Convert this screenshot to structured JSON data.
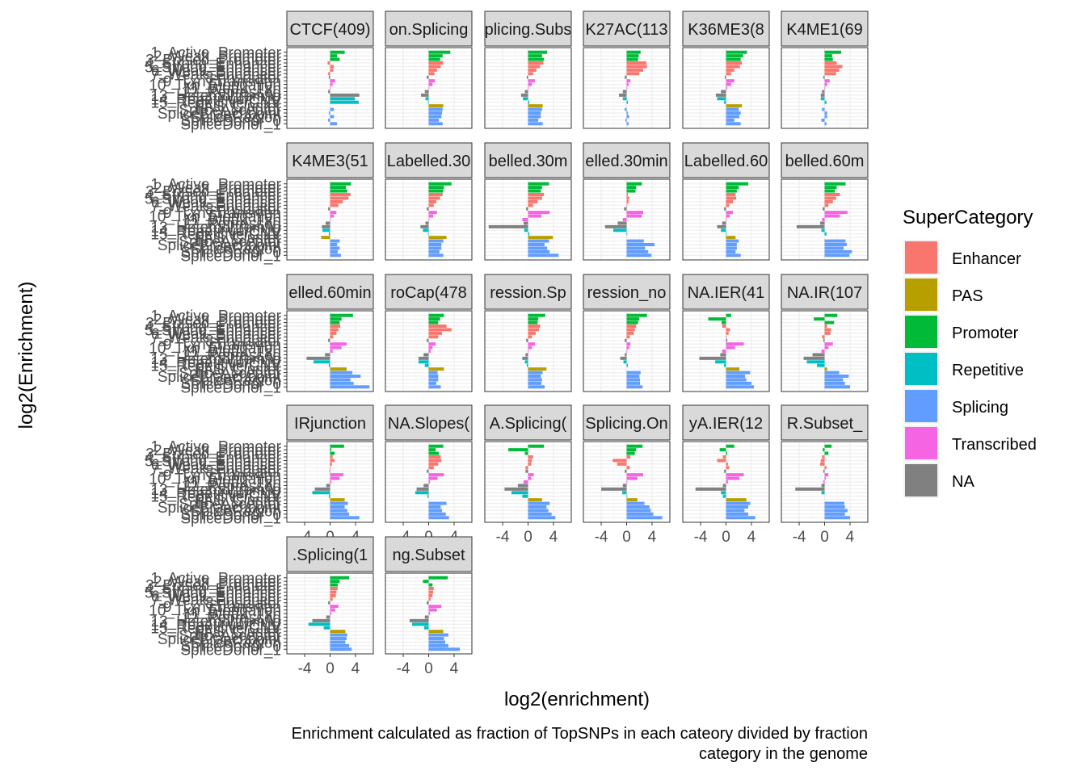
{
  "chart_data": {
    "type": "bar",
    "orientation": "horizontal",
    "facet_wrap_columns": 6,
    "xlabel": "log2(enrichment)",
    "ylabel": "log2(Enrichment)",
    "caption_lines": [
      "Enrichment calculated as fraction of TopSNPs in each cateory divided by fraction",
      "category in the genome"
    ],
    "xlim": [
      -6.8,
      6.8
    ],
    "x_ticks": [
      "-4",
      "0",
      "4"
    ],
    "grid": true,
    "legend_position": "right",
    "legend": {
      "title": "SuperCategory",
      "entries": [
        {
          "label": "Enhancer",
          "color": "#F8766D"
        },
        {
          "label": "PAS",
          "color": "#B79F00"
        },
        {
          "label": "Promoter",
          "color": "#00BA38"
        },
        {
          "label": "Repetitive",
          "color": "#00BFC4"
        },
        {
          "label": "Splicing",
          "color": "#619CFF"
        },
        {
          "label": "Transcribed",
          "color": "#F564E3"
        },
        {
          "label": "NA",
          "color": "#808080"
        }
      ]
    },
    "visible_y_labels": [
      "1_Active_Promoter",
      "2_Weak_Promoter",
      "3_Poised_Promoter",
      "4_Strong_Enhancer",
      "5_Strong_Enhancer",
      "6_Weak_Enhancer",
      "7_Weak_Enhancer",
      "8_Insulator",
      "9_Txn_Transition",
      "10_Txn_Elongation",
      "11_Weak_Txn",
      "12_Repressed",
      "13_Heterochrom/lo",
      "14_Repetitive/CNV",
      "15_Repetitive/CNV",
      "PAS_Cluster",
      "SpliceAcceptor",
      "SpliceBranchpoint",
      "SpliceRegion",
      "SpliceDonor_0",
      "SpliceDonor_1"
    ],
    "categories_super": [
      "Promoter",
      "Promoter",
      "Promoter",
      "Enhancer",
      "Enhancer",
      "Enhancer",
      "Enhancer",
      "NA",
      "Transcribed",
      "Transcribed",
      "Transcribed",
      "NA",
      "NA",
      "Repetitive",
      "Repetitive",
      "PAS",
      "Splicing",
      "Splicing",
      "Splicing",
      "Splicing",
      "Splicing"
    ],
    "facets": [
      {
        "strip": "CTCF(409)",
        "values": [
          2.3,
          1.1,
          1.5,
          -0.4,
          0.6,
          0.5,
          -0.3,
          -0.2,
          0.8,
          0.4,
          0.1,
          -0.3,
          4.6,
          3.9,
          4.5,
          0,
          0.6,
          -0.2,
          0.6,
          -0.3,
          1.1
        ]
      },
      {
        "strip": "on.Splicing",
        "values": [
          3.4,
          2.2,
          1.8,
          2.3,
          1.9,
          1.3,
          0.9,
          -0.3,
          1.0,
          0.6,
          0.1,
          -0.6,
          -1.2,
          -0.5,
          -0.1,
          2.3,
          2.2,
          2.1,
          2.0,
          1.6,
          2.2
        ]
      },
      {
        "strip": "plicing.Subs",
        "values": [
          3.0,
          2.2,
          2.5,
          2.4,
          1.9,
          1.3,
          0.8,
          -0.2,
          1.1,
          0.6,
          0.1,
          -0.5,
          -1.1,
          -0.8,
          0.2,
          2.3,
          2.2,
          2.0,
          2.0,
          1.6,
          2.3
        ]
      },
      {
        "strip": "K27AC(113",
        "values": [
          2.2,
          1.9,
          1.8,
          3.1,
          3.2,
          2.6,
          2.0,
          -0.3,
          0.6,
          0.3,
          0.1,
          -0.6,
          -1.2,
          -0.6,
          0.2,
          0,
          -0.3,
          0.2,
          0.4,
          -0.2,
          0.3
        ]
      },
      {
        "strip": "K36ME3(8",
        "values": [
          3.3,
          2.7,
          2.3,
          2.5,
          2.2,
          1.3,
          0.8,
          -0.2,
          1.3,
          0.8,
          0.2,
          -0.8,
          -1.6,
          -1.4,
          -0.3,
          2.5,
          2.0,
          2.3,
          2.1,
          1.3,
          2.3
        ]
      },
      {
        "strip": "K4ME1(69",
        "values": [
          2.6,
          1.2,
          1.3,
          1.9,
          2.8,
          2.3,
          1.8,
          -0.2,
          0.8,
          0.4,
          0.1,
          -0.4,
          -0.6,
          -0.6,
          0.3,
          0,
          -0.4,
          0.4,
          0.4,
          -0.5,
          0.3
        ]
      },
      {
        "strip": "K4ME3(51",
        "values": [
          3.3,
          2.5,
          2.7,
          3.2,
          2.9,
          2.0,
          1.3,
          -0.3,
          1.0,
          0.6,
          0.1,
          -0.7,
          -1.3,
          -1.2,
          -0.2,
          -1.4,
          1.5,
          1.1,
          1.5,
          1.2,
          1.7
        ]
      },
      {
        "strip": "Labelled.30",
        "values": [
          3.6,
          2.4,
          2.3,
          2.2,
          1.8,
          1.2,
          0.8,
          -0.3,
          1.3,
          0.7,
          0.1,
          -0.5,
          -1.3,
          -0.9,
          -0.1,
          2.8,
          2.3,
          2.0,
          2.0,
          1.7,
          2.3
        ]
      },
      {
        "strip": "belled.30m",
        "values": [
          3.3,
          2.2,
          2.0,
          2.5,
          2.2,
          1.5,
          0.8,
          -0.3,
          3.4,
          2.1,
          -0.9,
          -0.7,
          -6.2,
          -0.6,
          0.2,
          3.9,
          3.3,
          2.6,
          3.0,
          3.4,
          4.8
        ]
      },
      {
        "strip": "elled.30min",
        "values": [
          2.4,
          1.5,
          1.4,
          0.2,
          0.4,
          0.3,
          0.1,
          -0.4,
          2.6,
          2.4,
          -0.6,
          -1.4,
          -3.4,
          -2.1,
          0.1,
          0,
          2.7,
          4.4,
          2.9,
          3.4,
          3.9
        ]
      },
      {
        "strip": "Labelled.60",
        "values": [
          3.5,
          2.0,
          1.7,
          1.5,
          1.6,
          1.1,
          0.5,
          -0.3,
          1.1,
          0.6,
          0.1,
          -0.6,
          -1.4,
          -0.8,
          0.1,
          1.5,
          2.0,
          1.7,
          1.7,
          1.5,
          2.3
        ]
      },
      {
        "strip": "belled.60m",
        "values": [
          3.3,
          1.9,
          1.6,
          2.4,
          1.8,
          1.3,
          0.6,
          -0.3,
          3.6,
          2.4,
          -0.4,
          -0.7,
          -4.4,
          -0.5,
          0.3,
          0,
          3.3,
          3.5,
          3.0,
          4.3,
          3.9
        ]
      },
      {
        "strip": "elled.60min",
        "values": [
          3.6,
          1.8,
          1.5,
          1.6,
          1.3,
          1.0,
          0.5,
          -0.3,
          2.6,
          1.8,
          0.4,
          -0.8,
          -3.7,
          -2.6,
          -0.2,
          2.6,
          3.5,
          4.8,
          3.2,
          3.7,
          6.2
        ]
      },
      {
        "strip": "roCap(478",
        "values": [
          2.4,
          1.8,
          1.5,
          2.8,
          3.6,
          2.1,
          1.5,
          -0.3,
          1.1,
          0.6,
          0.3,
          -0.8,
          -1.6,
          -1.6,
          -0.6,
          2.4,
          1.4,
          1.5,
          1.5,
          1.2,
          1.9
        ]
      },
      {
        "strip": "ression.Sp",
        "values": [
          2.7,
          1.6,
          1.5,
          1.9,
          1.7,
          1.2,
          0.6,
          -0.3,
          1.1,
          0.6,
          0.1,
          -0.4,
          -0.9,
          -0.5,
          -0.2,
          2.9,
          2.3,
          2.0,
          2.2,
          2.1,
          2.6
        ]
      },
      {
        "strip": "ression_no",
        "values": [
          3.2,
          2.0,
          1.8,
          1.5,
          1.3,
          1.1,
          0.5,
          -0.3,
          0.6,
          0.4,
          0.1,
          -0.3,
          -1.0,
          -0.5,
          0.2,
          0,
          2.2,
          2.0,
          2.1,
          2.1,
          2.5
        ]
      },
      {
        "strip": "NA.IER(41",
        "values": [
          0.8,
          -2.8,
          -0.7,
          -0.6,
          0.6,
          0.4,
          0.1,
          0.2,
          2.8,
          1.4,
          -0.6,
          -0.9,
          -4.2,
          -1.7,
          -0.3,
          2.1,
          3.8,
          3.0,
          3.2,
          4.0,
          4.4
        ]
      },
      {
        "strip": "NA.IR(107",
        "values": [
          2.0,
          -1.7,
          1.5,
          0.4,
          1.0,
          0.9,
          -0.4,
          -0.2,
          1.3,
          0.6,
          -0.5,
          -1.9,
          -3.3,
          -2.8,
          -1.2,
          0.4,
          2.3,
          3.8,
          2.9,
          3.2,
          4.0
        ]
      },
      {
        "strip": "IRjunction",
        "values": [
          2.2,
          0.2,
          0.7,
          0.4,
          0.7,
          0.3,
          0.1,
          -0.1,
          2.1,
          1.5,
          0.2,
          -0.6,
          -2.4,
          -2.8,
          -0.2,
          2.3,
          2.8,
          2.3,
          2.7,
          3.0,
          4.6
        ]
      },
      {
        "strip": "NA.Slopes(",
        "values": [
          2.3,
          1.1,
          1.6,
          1.9,
          2.0,
          1.5,
          0.8,
          -0.3,
          2.4,
          1.4,
          0.2,
          -0.8,
          -1.9,
          -2.1,
          -0.2,
          0,
          2.8,
          1.9,
          2.1,
          2.7,
          3.2
        ]
      },
      {
        "strip": "A.Splicing(",
        "values": [
          2.5,
          -3.1,
          -0.5,
          0.8,
          0.6,
          0.5,
          -0.4,
          -0.4,
          0.9,
          0.5,
          -0.7,
          -1.6,
          -3.7,
          -2.6,
          -0.9,
          2.2,
          3.4,
          2.9,
          3.2,
          3.7,
          4.3
        ]
      },
      {
        "strip": "Splicing.On",
        "values": [
          2.5,
          1.5,
          1.3,
          0.6,
          -2.2,
          -1.5,
          0.5,
          -0.3,
          2.6,
          1.7,
          0.1,
          -0.6,
          -4.0,
          -0.7,
          0.1,
          1.7,
          2.8,
          3.6,
          3.8,
          4.2,
          5.6
        ]
      },
      {
        "strip": "yA.IER(12",
        "values": [
          1.3,
          -1.0,
          0.2,
          -0.5,
          -1.4,
          0.3,
          0.5,
          -0.3,
          2.8,
          2.1,
          0.3,
          -0.5,
          -4.8,
          -0.8,
          -0.5,
          3.2,
          3.8,
          3.5,
          2.9,
          3.5,
          4.6
        ]
      },
      {
        "strip": "R.Subset_",
        "values": [
          1.1,
          -0.3,
          0.6,
          -0.4,
          -0.6,
          -0.7,
          0.3,
          -0.2,
          0.6,
          0.2,
          -0.2,
          -0.5,
          -4.6,
          -0.5,
          0.0,
          0,
          3.1,
          3.2,
          3.6,
          3.2,
          4.0
        ]
      },
      {
        "strip": ".Splicing(1",
        "values": [
          3.0,
          1.5,
          1.2,
          1.2,
          1.0,
          0.9,
          0.4,
          -0.3,
          1.3,
          0.8,
          0.2,
          -0.6,
          -2.8,
          -3.4,
          -1.0,
          2.4,
          2.7,
          2.6,
          2.4,
          3.0,
          3.4
        ]
      },
      {
        "strip": "ng.Subset",
        "values": [
          3.0,
          -0.9,
          0.6,
          0.8,
          0.7,
          0.6,
          0.3,
          -0.3,
          2.0,
          1.3,
          0.2,
          -0.6,
          -3.0,
          -2.6,
          -0.7,
          2.3,
          3.1,
          2.4,
          2.6,
          3.1,
          4.9
        ]
      }
    ]
  }
}
